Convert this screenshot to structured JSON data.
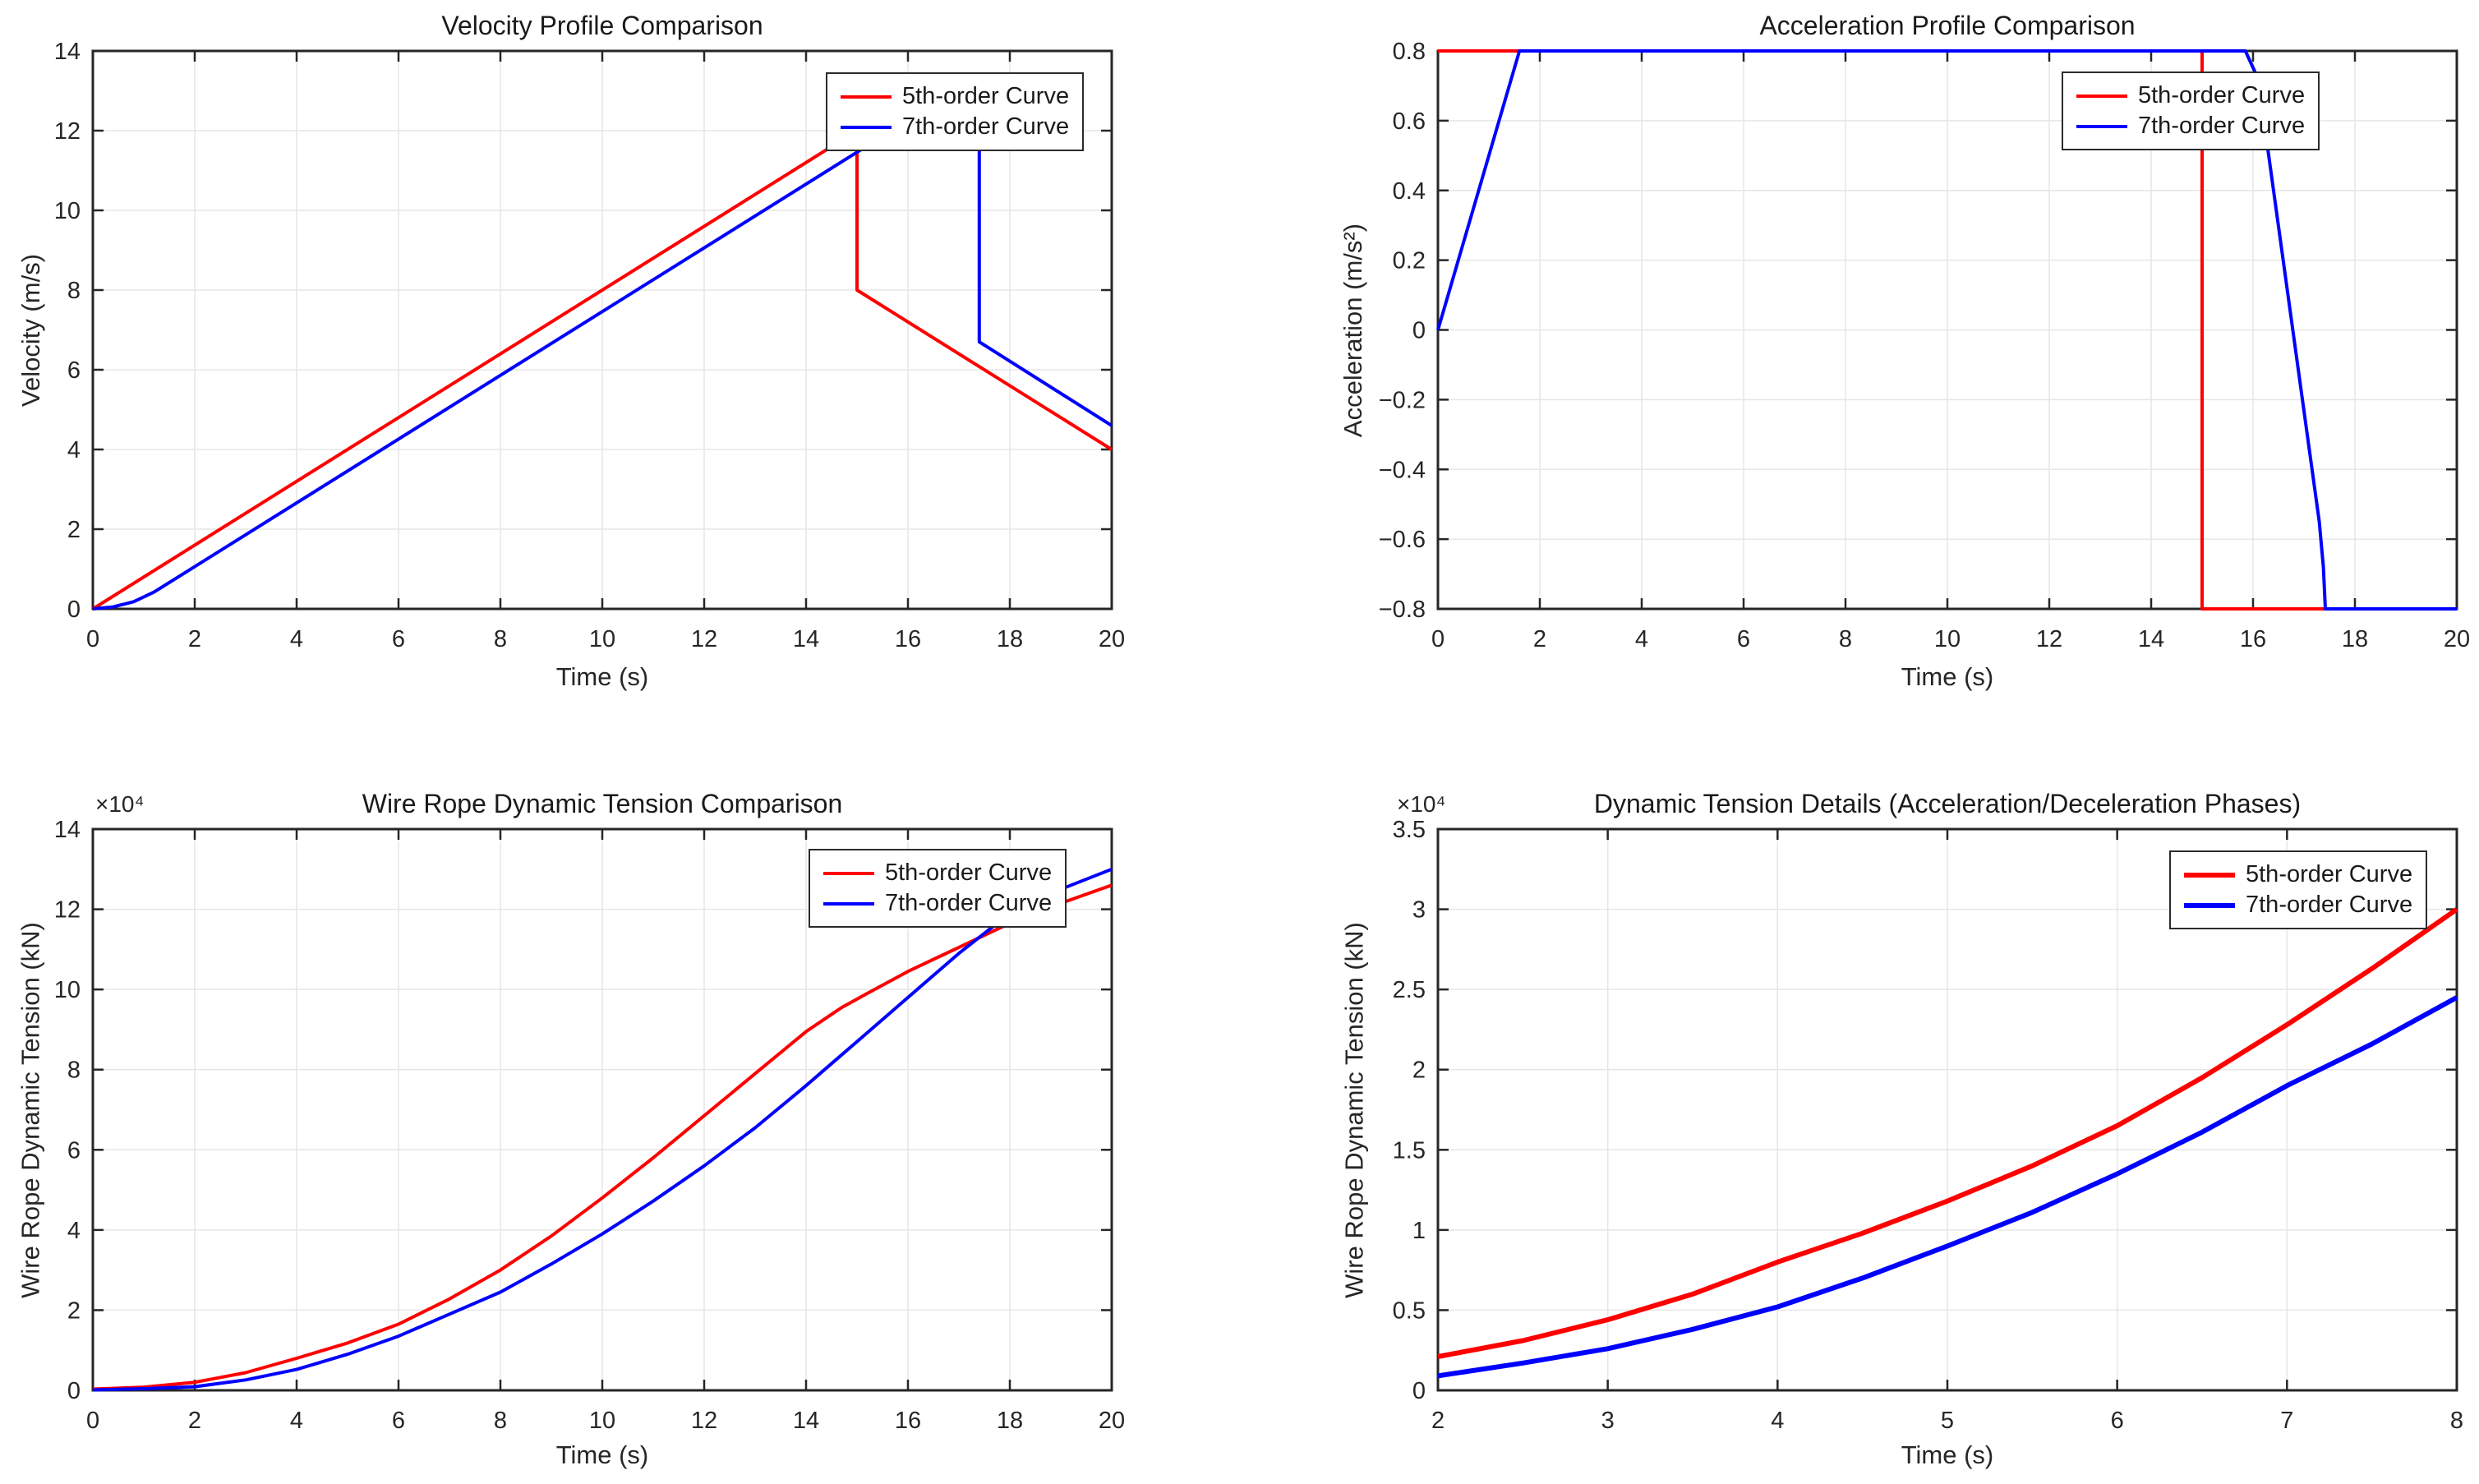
{
  "figure": {
    "background_color": "#ffffff",
    "axis_color": "#262626",
    "grid_color": "#e6e6e6",
    "accent_red": "#FF0000",
    "accent_blue": "#0000FF"
  },
  "chart_data": [
    {
      "id": "velocity",
      "type": "line",
      "title": "Velocity Profile Comparison",
      "xlabel": "Time (s)",
      "ylabel": "Velocity (m/s)",
      "xlim": [
        0,
        20
      ],
      "ylim": [
        0,
        14
      ],
      "xtick_values": [
        0,
        2,
        4,
        6,
        8,
        10,
        12,
        14,
        16,
        18,
        20
      ],
      "xtick_labels": [
        "0",
        "2",
        "4",
        "6",
        "8",
        "10",
        "12",
        "14",
        "16",
        "18",
        "20"
      ],
      "ytick_values": [
        0,
        2,
        4,
        6,
        8,
        10,
        12,
        14
      ],
      "ytick_labels": [
        "0",
        "2",
        "4",
        "6",
        "8",
        "10",
        "12",
        "14"
      ],
      "exponent_label": "",
      "grid": true,
      "legend_position": "northeast",
      "series": [
        {
          "name": "5th-order Curve",
          "color": "#FF0000",
          "linewidth": 4,
          "points": [
            [
              0,
              0
            ],
            [
              15,
              12
            ],
            [
              15,
              8
            ],
            [
              20,
              4
            ]
          ]
        },
        {
          "name": "7th-order Curve",
          "color": "#0000FF",
          "linewidth": 4,
          "points": [
            [
              0,
              0
            ],
            [
              0.4,
              0.05
            ],
            [
              0.8,
              0.18
            ],
            [
              1.2,
              0.42
            ],
            [
              1.6,
              0.74
            ],
            [
              15.8,
              12.1
            ],
            [
              16.6,
              12.45
            ],
            [
              17.1,
              12.62
            ],
            [
              17.4,
              12.7
            ],
            [
              17.4,
              6.7
            ],
            [
              20,
              4.6
            ]
          ]
        }
      ]
    },
    {
      "id": "acceleration",
      "type": "line",
      "title": "Acceleration Profile Comparison",
      "xlabel": "Time (s)",
      "ylabel": "Acceleration (m/s²)",
      "xlim": [
        0,
        20
      ],
      "ylim": [
        -0.8,
        0.8
      ],
      "xtick_values": [
        0,
        2,
        4,
        6,
        8,
        10,
        12,
        14,
        16,
        18,
        20
      ],
      "xtick_labels": [
        "0",
        "2",
        "4",
        "6",
        "8",
        "10",
        "12",
        "14",
        "16",
        "18",
        "20"
      ],
      "ytick_values": [
        -0.8,
        -0.6,
        -0.4,
        -0.2,
        0,
        0.2,
        0.4,
        0.6,
        0.8
      ],
      "ytick_labels": [
        "−0.8",
        "−0.6",
        "−0.4",
        "−0.2",
        "0",
        "0.2",
        "0.4",
        "0.6",
        "0.8"
      ],
      "exponent_label": "",
      "grid": true,
      "legend_position": "northeast",
      "series": [
        {
          "name": "5th-order Curve",
          "color": "#FF0000",
          "linewidth": 4,
          "points": [
            [
              0,
              0.8
            ],
            [
              15,
              0.8
            ],
            [
              15,
              -0.8
            ],
            [
              20,
              -0.8
            ]
          ]
        },
        {
          "name": "7th-order Curve",
          "color": "#0000FF",
          "linewidth": 4,
          "points": [
            [
              0,
              0
            ],
            [
              1.6,
              0.8
            ],
            [
              15.85,
              0.8
            ],
            [
              16.1,
              0.72
            ],
            [
              17.3,
              -0.55
            ],
            [
              17.38,
              -0.68
            ],
            [
              17.42,
              -0.8
            ],
            [
              20,
              -0.8
            ]
          ]
        }
      ]
    },
    {
      "id": "tension",
      "type": "line",
      "title": "Wire Rope Dynamic Tension Comparison",
      "xlabel": "Time (s)",
      "ylabel": "Wire Rope Dynamic Tension (kN)",
      "xlim": [
        0,
        20
      ],
      "ylim": [
        0,
        14
      ],
      "xtick_values": [
        0,
        2,
        4,
        6,
        8,
        10,
        12,
        14,
        16,
        18,
        20
      ],
      "xtick_labels": [
        "0",
        "2",
        "4",
        "6",
        "8",
        "10",
        "12",
        "14",
        "16",
        "18",
        "20"
      ],
      "ytick_values": [
        0,
        2,
        4,
        6,
        8,
        10,
        12,
        14
      ],
      "ytick_labels": [
        "0",
        "2",
        "4",
        "6",
        "8",
        "10",
        "12",
        "14"
      ],
      "exponent_label": "×10⁴",
      "grid": true,
      "legend_position": "northeast",
      "series": [
        {
          "name": "5th-order Curve",
          "color": "#FF0000",
          "linewidth": 4,
          "points": [
            [
              0,
              0.03
            ],
            [
              1,
              0.08
            ],
            [
              2,
              0.2
            ],
            [
              3,
              0.44
            ],
            [
              4,
              0.8
            ],
            [
              5,
              1.18
            ],
            [
              6,
              1.65
            ],
            [
              7,
              2.28
            ],
            [
              8,
              3.0
            ],
            [
              9,
              3.85
            ],
            [
              10,
              4.8
            ],
            [
              11,
              5.8
            ],
            [
              12,
              6.85
            ],
            [
              13,
              7.9
            ],
            [
              14,
              8.95
            ],
            [
              14.7,
              9.55
            ],
            [
              15.2,
              9.9
            ],
            [
              16,
              10.45
            ],
            [
              17,
              11.05
            ],
            [
              18,
              11.65
            ],
            [
              19,
              12.15
            ],
            [
              20,
              12.6
            ]
          ]
        },
        {
          "name": "7th-order Curve",
          "color": "#0000FF",
          "linewidth": 4,
          "points": [
            [
              0,
              0.01
            ],
            [
              1,
              0.04
            ],
            [
              2,
              0.09
            ],
            [
              3,
              0.26
            ],
            [
              4,
              0.52
            ],
            [
              5,
              0.9
            ],
            [
              6,
              1.35
            ],
            [
              7,
              1.9
            ],
            [
              8,
              2.45
            ],
            [
              9,
              3.15
            ],
            [
              10,
              3.9
            ],
            [
              11,
              4.72
            ],
            [
              12,
              5.6
            ],
            [
              13,
              6.55
            ],
            [
              14,
              7.6
            ],
            [
              15,
              8.7
            ],
            [
              16,
              9.8
            ],
            [
              17,
              10.9
            ],
            [
              18,
              11.9
            ],
            [
              19,
              12.5
            ],
            [
              20,
              13.0
            ]
          ]
        }
      ]
    },
    {
      "id": "tension_detail",
      "type": "line",
      "title": "Dynamic Tension Details (Acceleration/Deceleration Phases)",
      "xlabel": "Time (s)",
      "ylabel": "Wire Rope Dynamic Tension (kN)",
      "xlim": [
        2,
        8
      ],
      "ylim": [
        0,
        3.5
      ],
      "xtick_values": [
        2,
        3,
        4,
        5,
        6,
        7,
        8
      ],
      "xtick_labels": [
        "2",
        "3",
        "4",
        "5",
        "6",
        "7",
        "8"
      ],
      "ytick_values": [
        0,
        0.5,
        1,
        1.5,
        2,
        2.5,
        3,
        3.5
      ],
      "ytick_labels": [
        "0",
        "0.5",
        "1",
        "1.5",
        "2",
        "2.5",
        "3",
        "3.5"
      ],
      "exponent_label": "×10⁴",
      "grid": true,
      "legend_position": "northeast",
      "series": [
        {
          "name": "5th-order Curve",
          "color": "#FF0000",
          "linewidth": 6,
          "points": [
            [
              2,
              0.21
            ],
            [
              2.5,
              0.31
            ],
            [
              3,
              0.44
            ],
            [
              3.5,
              0.6
            ],
            [
              4,
              0.8
            ],
            [
              4.5,
              0.98
            ],
            [
              5,
              1.18
            ],
            [
              5.5,
              1.4
            ],
            [
              6,
              1.65
            ],
            [
              6.5,
              1.95
            ],
            [
              7,
              2.28
            ],
            [
              7.5,
              2.63
            ],
            [
              8,
              3.0
            ]
          ]
        },
        {
          "name": "7th-order Curve",
          "color": "#0000FF",
          "linewidth": 6,
          "points": [
            [
              2,
              0.09
            ],
            [
              2.5,
              0.17
            ],
            [
              3,
              0.26
            ],
            [
              3.5,
              0.38
            ],
            [
              4,
              0.52
            ],
            [
              4.5,
              0.7
            ],
            [
              5,
              0.9
            ],
            [
              5.5,
              1.11
            ],
            [
              6,
              1.35
            ],
            [
              6.5,
              1.61
            ],
            [
              7,
              1.9
            ],
            [
              7.5,
              2.16
            ],
            [
              8,
              2.45
            ]
          ]
        }
      ]
    }
  ]
}
